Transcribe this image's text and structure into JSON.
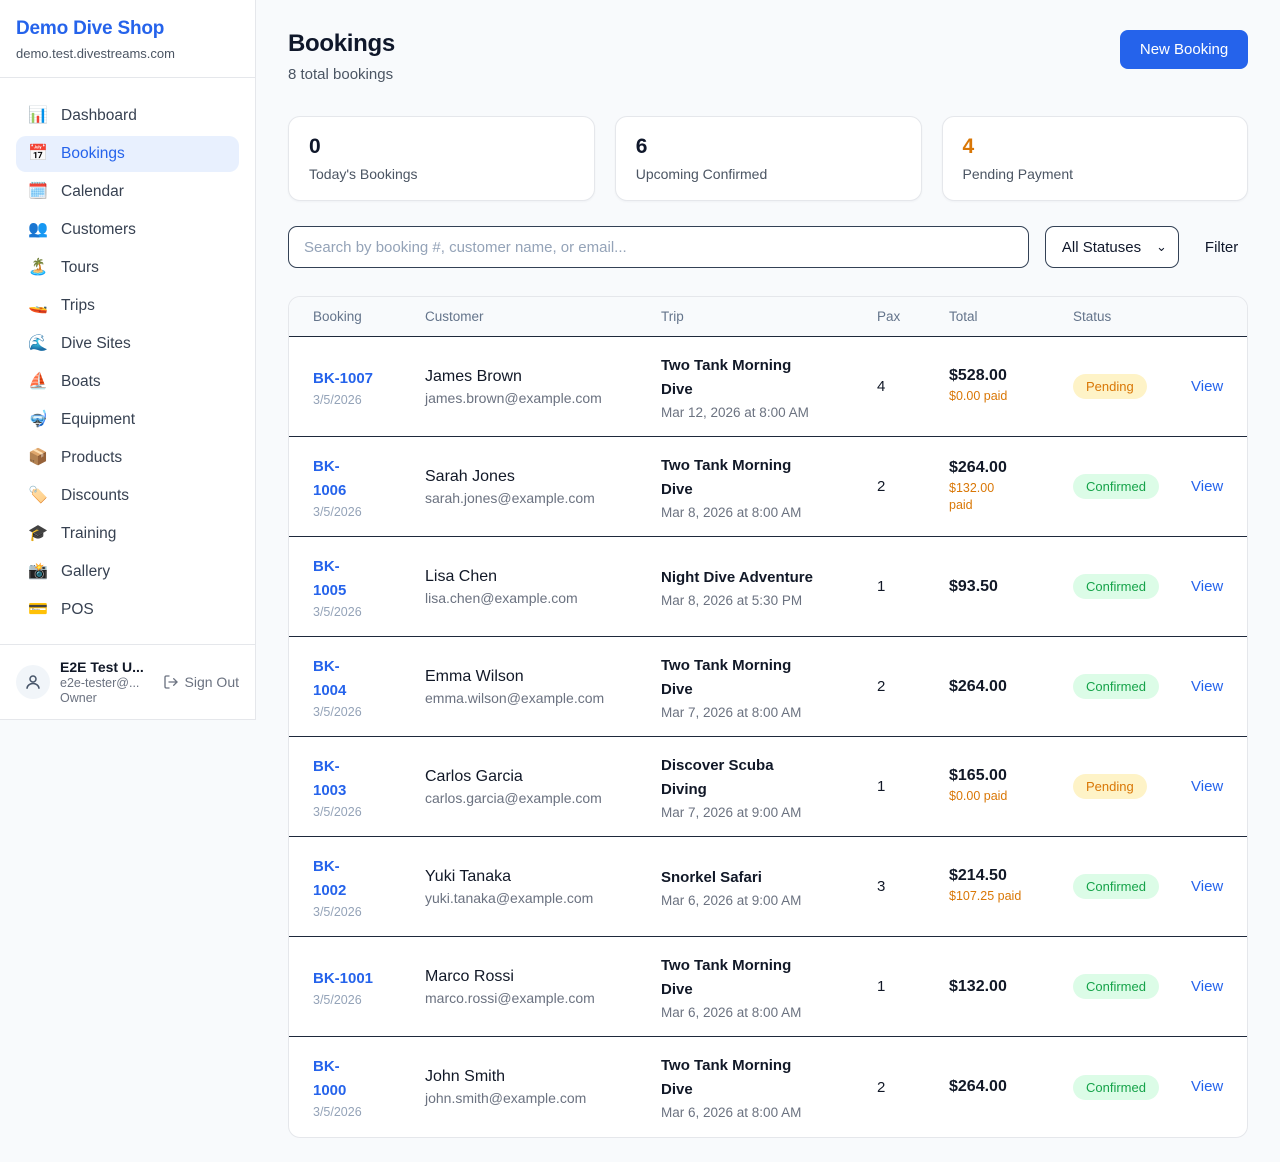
{
  "sidebar": {
    "shop_name": "Demo Dive Shop",
    "shop_domain": "demo.test.divestreams.com",
    "items": [
      {
        "slug": "dashboard",
        "label": "Dashboard",
        "glyph": "📊",
        "active": false
      },
      {
        "slug": "bookings",
        "label": "Bookings",
        "glyph": "📅",
        "active": true
      },
      {
        "slug": "calendar",
        "label": "Calendar",
        "glyph": "🗓️",
        "active": false
      },
      {
        "slug": "customers",
        "label": "Customers",
        "glyph": "👥",
        "active": false
      },
      {
        "slug": "tours",
        "label": "Tours",
        "glyph": "🏝️",
        "active": false
      },
      {
        "slug": "trips",
        "label": "Trips",
        "glyph": "🚤",
        "active": false
      },
      {
        "slug": "dive-sites",
        "label": "Dive Sites",
        "glyph": "🌊",
        "active": false
      },
      {
        "slug": "boats",
        "label": "Boats",
        "glyph": "⛵",
        "active": false
      },
      {
        "slug": "equipment",
        "label": "Equipment",
        "glyph": "🤿",
        "active": false
      },
      {
        "slug": "products",
        "label": "Products",
        "glyph": "📦",
        "active": false
      },
      {
        "slug": "discounts",
        "label": "Discounts",
        "glyph": "🏷️",
        "active": false
      },
      {
        "slug": "training",
        "label": "Training",
        "glyph": "🎓",
        "active": false
      },
      {
        "slug": "gallery",
        "label": "Gallery",
        "glyph": "📸",
        "active": false
      },
      {
        "slug": "pos",
        "label": "POS",
        "glyph": "💳",
        "active": false
      }
    ],
    "user": {
      "name": "E2E Test U...",
      "email": "e2e-tester@...",
      "role": "Owner",
      "sign_out_label": "Sign Out"
    }
  },
  "header": {
    "title": "Bookings",
    "subtitle": "8 total bookings",
    "new_booking_label": "New Booking"
  },
  "stats": [
    {
      "value": "0",
      "label": "Today's Bookings",
      "accent": false
    },
    {
      "value": "6",
      "label": "Upcoming Confirmed",
      "accent": false
    },
    {
      "value": "4",
      "label": "Pending Payment",
      "accent": true,
      "accent_color": "#d97706"
    }
  ],
  "filters": {
    "search_placeholder": "Search by booking #, customer name, or email...",
    "status_selected": "All Statuses",
    "filter_label": "Filter"
  },
  "status_styles": {
    "Confirmed": {
      "bg": "#dcfce7",
      "text": "#16a34a"
    },
    "Pending": {
      "bg": "#fef3c7",
      "text": "#d97706"
    }
  },
  "table": {
    "columns": [
      "Booking",
      "Customer",
      "Trip",
      "Pax",
      "Total",
      "Status",
      ""
    ],
    "rows": [
      {
        "id_lines": [
          "BK-1007"
        ],
        "date": "3/5/2026",
        "customer_name": "James Brown",
        "customer_email": "james.brown@example.com",
        "trip_lines": [
          "Two Tank Morning",
          "Dive"
        ],
        "trip_datetime": "Mar 12, 2026 at 8:00 AM",
        "pax": "4",
        "total": "$528.00",
        "paid_lines": [
          "$0.00 paid"
        ],
        "status": "Pending",
        "action": "View"
      },
      {
        "id_lines": [
          "BK-",
          "1006"
        ],
        "date": "3/5/2026",
        "customer_name": "Sarah Jones",
        "customer_email": "sarah.jones@example.com",
        "trip_lines": [
          "Two Tank Morning",
          "Dive"
        ],
        "trip_datetime": "Mar 8, 2026 at 8:00 AM",
        "pax": "2",
        "total": "$264.00",
        "paid_lines": [
          "$132.00",
          "paid"
        ],
        "status": "Confirmed",
        "action": "View"
      },
      {
        "id_lines": [
          "BK-",
          "1005"
        ],
        "date": "3/5/2026",
        "customer_name": "Lisa Chen",
        "customer_email": "lisa.chen@example.com",
        "trip_lines": [
          "Night Dive Adventure"
        ],
        "trip_datetime": "Mar 8, 2026 at 5:30 PM",
        "pax": "1",
        "total": "$93.50",
        "paid_lines": [],
        "status": "Confirmed",
        "action": "View"
      },
      {
        "id_lines": [
          "BK-",
          "1004"
        ],
        "date": "3/5/2026",
        "customer_name": "Emma Wilson",
        "customer_email": "emma.wilson@example.com",
        "trip_lines": [
          "Two Tank Morning",
          "Dive"
        ],
        "trip_datetime": "Mar 7, 2026 at 8:00 AM",
        "pax": "2",
        "total": "$264.00",
        "paid_lines": [],
        "status": "Confirmed",
        "action": "View"
      },
      {
        "id_lines": [
          "BK-",
          "1003"
        ],
        "date": "3/5/2026",
        "customer_name": "Carlos Garcia",
        "customer_email": "carlos.garcia@example.com",
        "trip_lines": [
          "Discover Scuba",
          "Diving"
        ],
        "trip_datetime": "Mar 7, 2026 at 9:00 AM",
        "pax": "1",
        "total": "$165.00",
        "paid_lines": [
          "$0.00 paid"
        ],
        "status": "Pending",
        "action": "View"
      },
      {
        "id_lines": [
          "BK-",
          "1002"
        ],
        "date": "3/5/2026",
        "customer_name": "Yuki Tanaka",
        "customer_email": "yuki.tanaka@example.com",
        "trip_lines": [
          "Snorkel Safari"
        ],
        "trip_datetime": "Mar 6, 2026 at 9:00 AM",
        "pax": "3",
        "total": "$214.50",
        "paid_lines": [
          "$107.25 paid"
        ],
        "status": "Confirmed",
        "action": "View"
      },
      {
        "id_lines": [
          "BK-1001"
        ],
        "date": "3/5/2026",
        "customer_name": "Marco Rossi",
        "customer_email": "marco.rossi@example.com",
        "trip_lines": [
          "Two Tank Morning",
          "Dive"
        ],
        "trip_datetime": "Mar 6, 2026 at 8:00 AM",
        "pax": "1",
        "total": "$132.00",
        "paid_lines": [],
        "status": "Confirmed",
        "action": "View"
      },
      {
        "id_lines": [
          "BK-",
          "1000"
        ],
        "date": "3/5/2026",
        "customer_name": "John Smith",
        "customer_email": "john.smith@example.com",
        "trip_lines": [
          "Two Tank Morning",
          "Dive"
        ],
        "trip_datetime": "Mar 6, 2026 at 8:00 AM",
        "pax": "2",
        "total": "$264.00",
        "paid_lines": [],
        "status": "Confirmed",
        "action": "View"
      }
    ]
  },
  "colors": {
    "brand_blue": "#2563eb",
    "page_bg": "#f8fafc",
    "accent_orange": "#d97706",
    "row_divider": "#1e293b"
  }
}
